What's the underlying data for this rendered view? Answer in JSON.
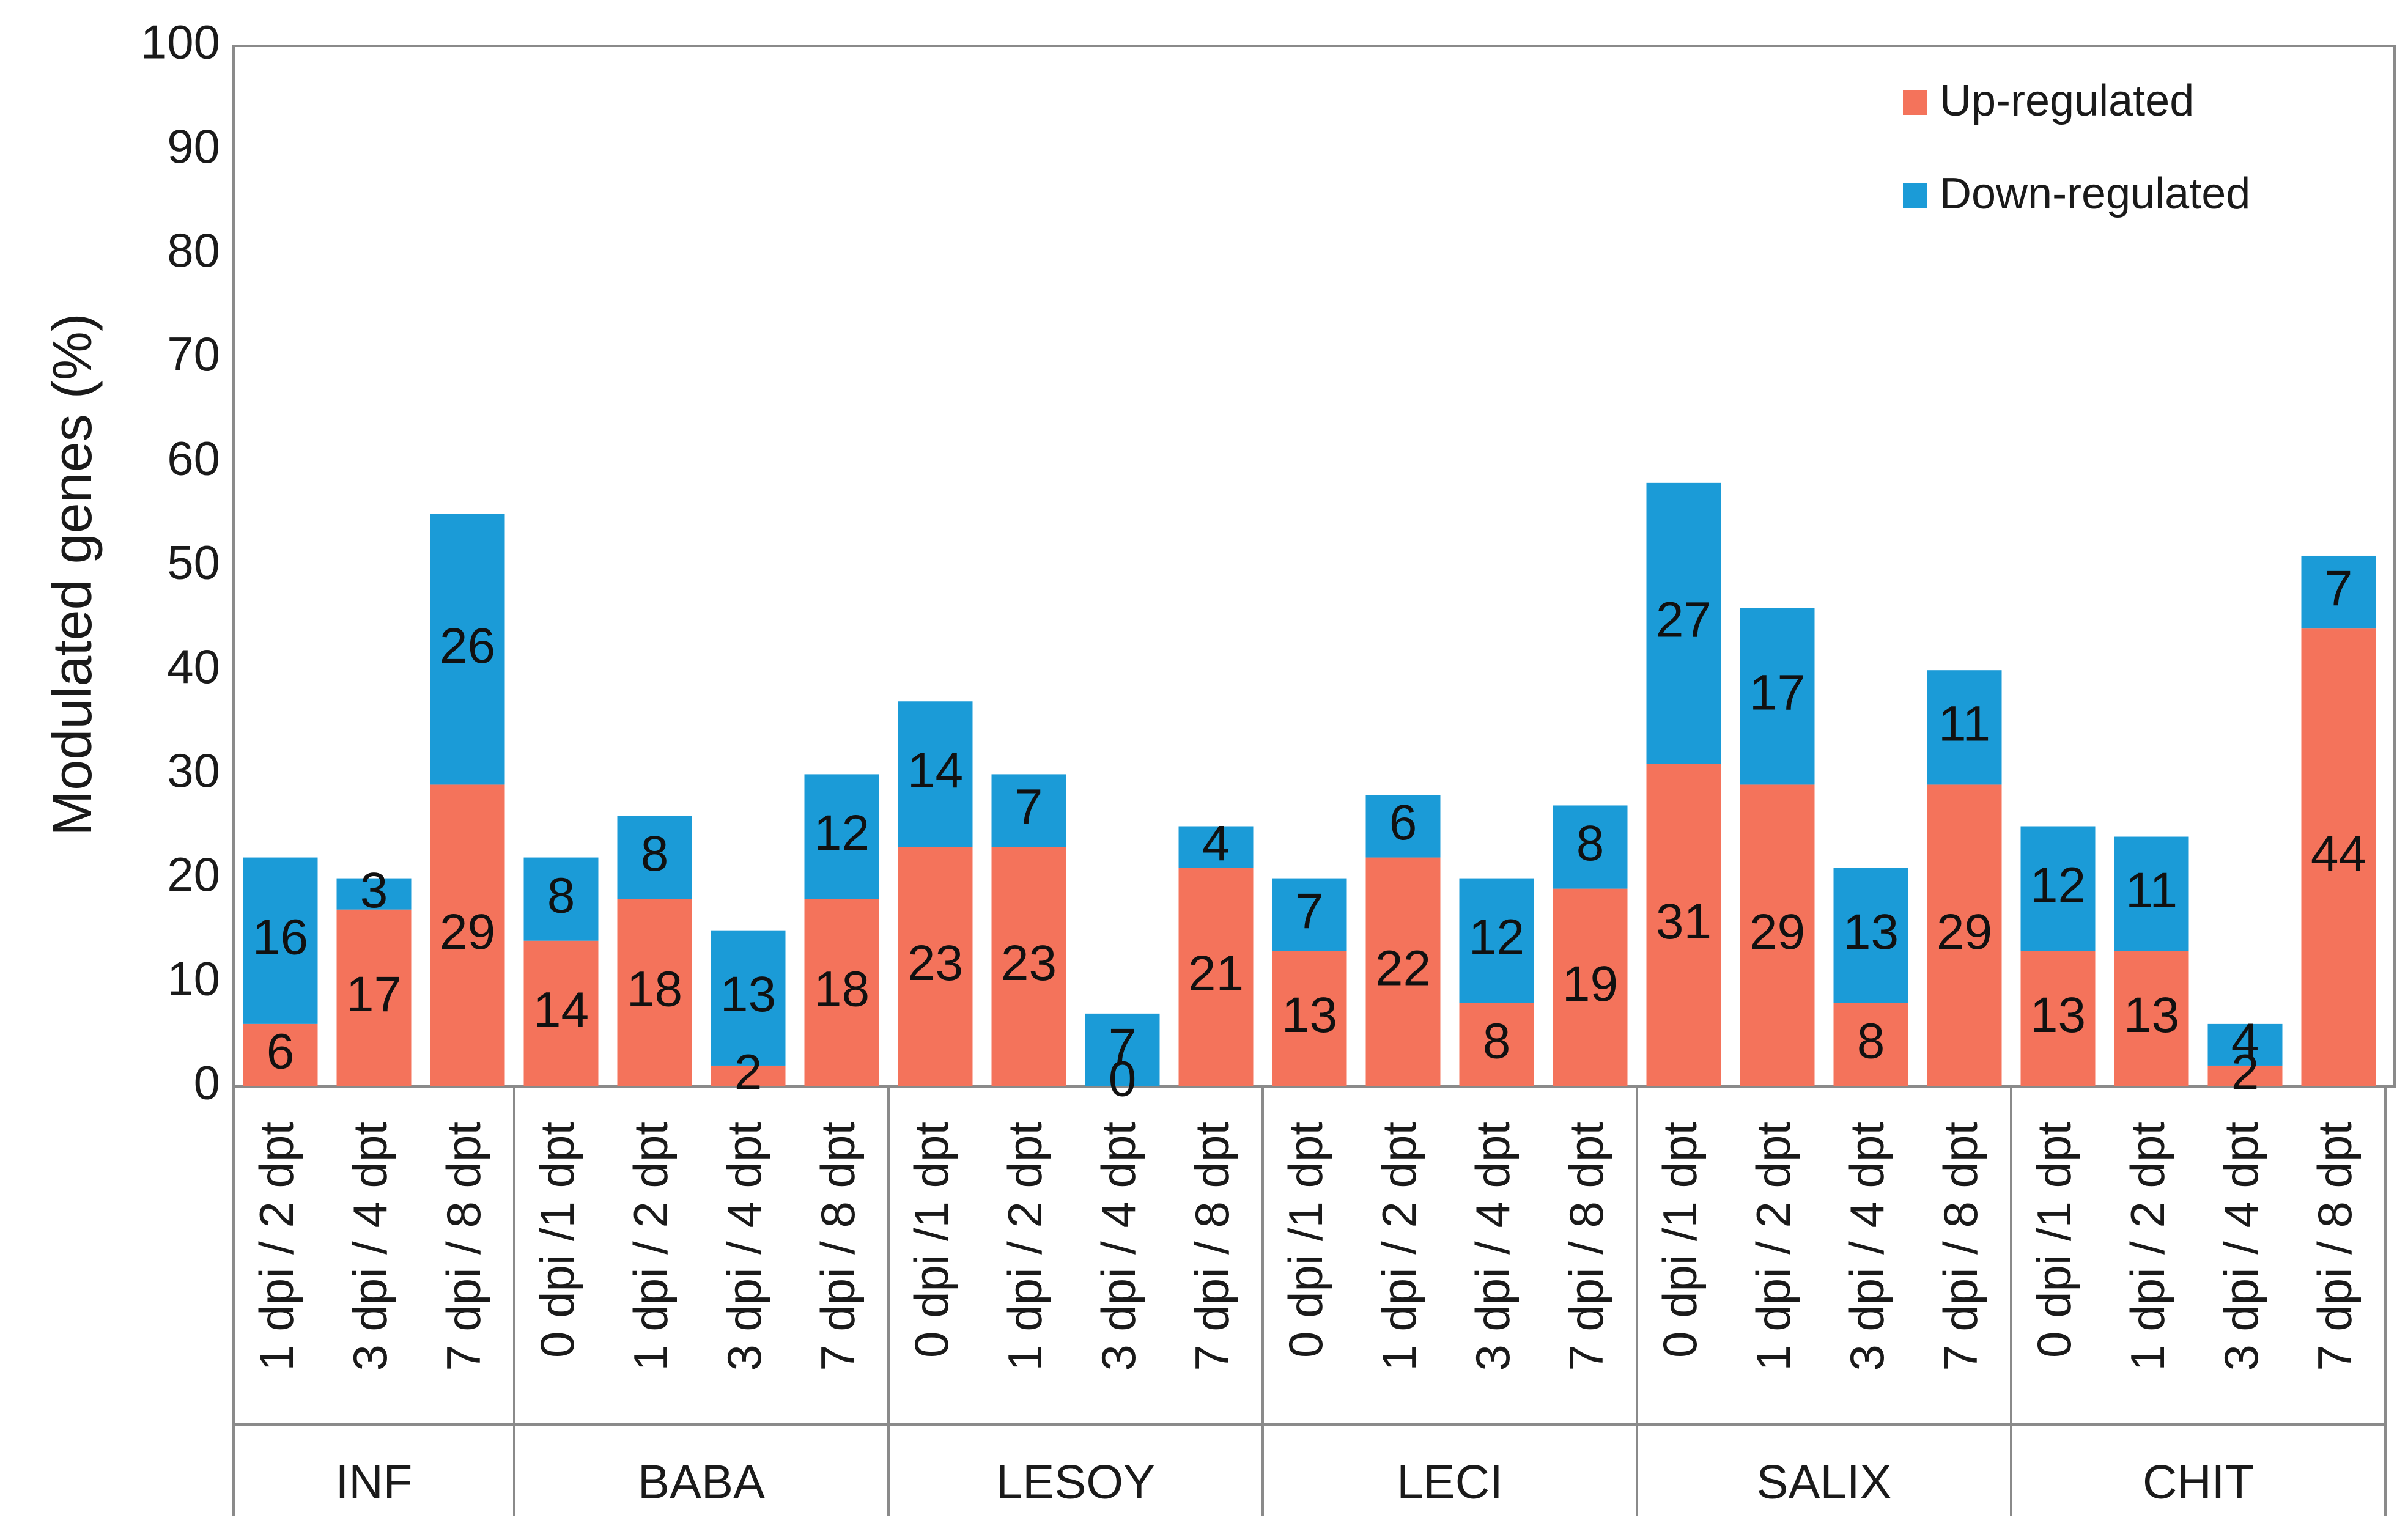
{
  "chart_data": {
    "type": "bar",
    "stacked": true,
    "title": "",
    "xlabel": "",
    "ylabel": "Modulated genes (%)",
    "ylim": [
      0,
      100
    ],
    "yticks": [
      0,
      10,
      20,
      30,
      40,
      50,
      60,
      70,
      80,
      90,
      100
    ],
    "grid": false,
    "legend_position": "top-right",
    "groups": [
      {
        "name": "INF",
        "categories": [
          "1 dpi / 2 dpt",
          "3 dpi / 4 dpt",
          "7 dpi / 8 dpt"
        ]
      },
      {
        "name": "BABA",
        "categories": [
          "0 dpi /1 dpt",
          "1 dpi / 2 dpt",
          "3 dpi / 4 dpt",
          "7 dpi / 8 dpt"
        ]
      },
      {
        "name": "LESOY",
        "categories": [
          "0 dpi /1 dpt",
          "1 dpi / 2 dpt",
          "3 dpi / 4 dpt",
          "7 dpi / 8 dpt"
        ]
      },
      {
        "name": "LECI",
        "categories": [
          "0 dpi /1 dpt",
          "1 dpi / 2 dpt",
          "3 dpi / 4 dpt",
          "7 dpi / 8 dpt"
        ]
      },
      {
        "name": "SALIX",
        "categories": [
          "0 dpi /1 dpt",
          "1 dpi / 2 dpt",
          "3 dpi / 4 dpt",
          "7 dpi / 8 dpt"
        ]
      },
      {
        "name": "CHIT",
        "categories": [
          "0 dpi /1 dpt",
          "1 dpi / 2 dpt",
          "3 dpi / 4 dpt",
          "7 dpi / 8 dpt"
        ]
      }
    ],
    "series": [
      {
        "name": "Up-regulated",
        "color": "#F4735B",
        "values": [
          6,
          17,
          29,
          14,
          18,
          2,
          18,
          23,
          23,
          0,
          21,
          13,
          22,
          8,
          19,
          31,
          29,
          8,
          29,
          13,
          13,
          2,
          44
        ],
        "labels": [
          "6",
          "17",
          "29",
          "14",
          "18",
          "2",
          "18",
          "23",
          "23",
          "0",
          "21",
          "13",
          "22",
          "8",
          "19",
          "31",
          "29",
          "8",
          "29",
          "13",
          "13",
          "2",
          "44"
        ]
      },
      {
        "name": "Down-regulated",
        "color": "#1B9BD7",
        "values": [
          16,
          3,
          26,
          8,
          8,
          13,
          12,
          14,
          7,
          7,
          4,
          7,
          6,
          12,
          8,
          27,
          17,
          13,
          11,
          12,
          11,
          4,
          7
        ],
        "labels": [
          "16",
          "3",
          "26",
          "8",
          "8",
          "13",
          "12",
          "14",
          "7",
          "7",
          "4",
          "7",
          "6",
          "12",
          "8",
          "27",
          "17",
          "13",
          "11",
          "12",
          "11",
          "4",
          "7"
        ]
      }
    ]
  }
}
